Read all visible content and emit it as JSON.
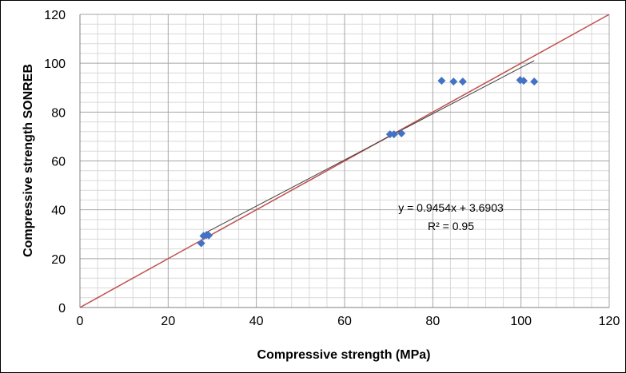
{
  "chart_data": {
    "type": "scatter",
    "title": "",
    "xlabel": "Compressive strength (MPa)",
    "ylabel": "Compressive strength SONREB",
    "xlim": [
      0,
      120
    ],
    "ylim": [
      0,
      120
    ],
    "x_ticks": [
      0,
      20,
      40,
      60,
      80,
      100,
      120
    ],
    "y_ticks": [
      0,
      20,
      40,
      60,
      80,
      100,
      120
    ],
    "grid": true,
    "minor_grid": true,
    "series": [
      {
        "points": [
          [
            27.5,
            26.3
          ],
          [
            28.0,
            29.3
          ],
          [
            28.7,
            29.7
          ],
          [
            29.2,
            29.5
          ],
          [
            70.3,
            70.9
          ],
          [
            71.2,
            70.9
          ],
          [
            72.9,
            71.3
          ],
          [
            82.0,
            92.8
          ],
          [
            84.7,
            92.5
          ],
          [
            86.8,
            92.5
          ],
          [
            99.8,
            93.1
          ],
          [
            100.6,
            92.8
          ],
          [
            103.0,
            92.5
          ]
        ],
        "color": "#4472C4",
        "marker": "diamond"
      }
    ],
    "trendline": {
      "slope": 0.9454,
      "intercept": 3.6903,
      "x_range": [
        28,
        103
      ],
      "color": "#404040"
    },
    "reference_line": {
      "slope": 1,
      "intercept": 0,
      "x_range": [
        0,
        120
      ],
      "color": "#C0504D"
    },
    "annotations": [
      "y = 0.9454x + 3.6903",
      "R² = 0.95"
    ],
    "colors": {
      "grid_major": "#a6a6a6",
      "grid_minor": "#d9d9d9",
      "axis": "#7f7f7f"
    }
  }
}
